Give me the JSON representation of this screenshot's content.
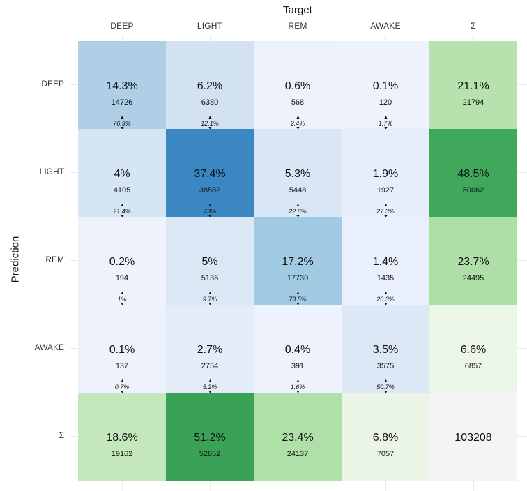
{
  "chart_data": {
    "type": "heatmap",
    "xlabel": "Target",
    "ylabel": "Prediction",
    "columns": [
      "DEEP",
      "LIGHT",
      "REM",
      "AWAKE",
      "Σ"
    ],
    "rows": [
      "DEEP",
      "LIGHT",
      "REM",
      "AWAKE",
      "Σ"
    ],
    "cells": [
      [
        {
          "pct": "14.3%",
          "count": "14726",
          "col_pct": "76.9%",
          "color": "#aecfe6"
        },
        {
          "pct": "6.2%",
          "count": "6380",
          "col_pct": "12.1%",
          "color": "#d2e2f3"
        },
        {
          "pct": "0.6%",
          "count": "568",
          "col_pct": "2.4%",
          "color": "#ecf1fc"
        },
        {
          "pct": "0.1%",
          "count": "120",
          "col_pct": "1.7%",
          "color": "#edf2fc"
        },
        {
          "pct": "21.1%",
          "count": "21794",
          "color": "#b8e2ad"
        }
      ],
      [
        {
          "pct": "4%",
          "count": "4105",
          "col_pct": "21.4%",
          "color": "#d6e5f4"
        },
        {
          "pct": "37.4%",
          "count": "38582",
          "col_pct": "73%",
          "color": "#3a87c2"
        },
        {
          "pct": "5.3%",
          "count": "5448",
          "col_pct": "22.6%",
          "color": "#d9e6f5"
        },
        {
          "pct": "1.9%",
          "count": "1927",
          "col_pct": "27.3%",
          "color": "#e6eefa"
        },
        {
          "pct": "48.5%",
          "count": "50062",
          "color": "#40a85a"
        }
      ],
      [
        {
          "pct": "0.2%",
          "count": "194",
          "col_pct": "1%",
          "color": "#edf2fc"
        },
        {
          "pct": "5%",
          "count": "5136",
          "col_pct": "9.7%",
          "color": "#dbe7f5"
        },
        {
          "pct": "17.2%",
          "count": "17730",
          "col_pct": "73.5%",
          "color": "#a1cae3"
        },
        {
          "pct": "1.4%",
          "count": "1435",
          "col_pct": "20.3%",
          "color": "#e9f0fb"
        },
        {
          "pct": "23.7%",
          "count": "24495",
          "color": "#addfa6"
        }
      ],
      [
        {
          "pct": "0.1%",
          "count": "137",
          "col_pct": "0.7%",
          "color": "#eef2fd"
        },
        {
          "pct": "2.7%",
          "count": "2754",
          "col_pct": "5.2%",
          "color": "#e4ecf9"
        },
        {
          "pct": "0.4%",
          "count": "391",
          "col_pct": "1.6%",
          "color": "#edf2fc"
        },
        {
          "pct": "3.5%",
          "count": "3575",
          "col_pct": "50.7%",
          "color": "#dde8f6"
        },
        {
          "pct": "6.6%",
          "count": "6857",
          "color": "#ebf6e7"
        }
      ],
      [
        {
          "pct": "18.6%",
          "count": "19162",
          "color": "#c4e7bb"
        },
        {
          "pct": "51.2%",
          "count": "52852",
          "color": "#3aa256"
        },
        {
          "pct": "23.4%",
          "count": "24137",
          "color": "#afe0a7"
        },
        {
          "pct": "6.8%",
          "count": "7057",
          "color": "#eaf5e5"
        },
        {
          "total": "103208",
          "color": "#f4f4f4"
        }
      ]
    ]
  }
}
